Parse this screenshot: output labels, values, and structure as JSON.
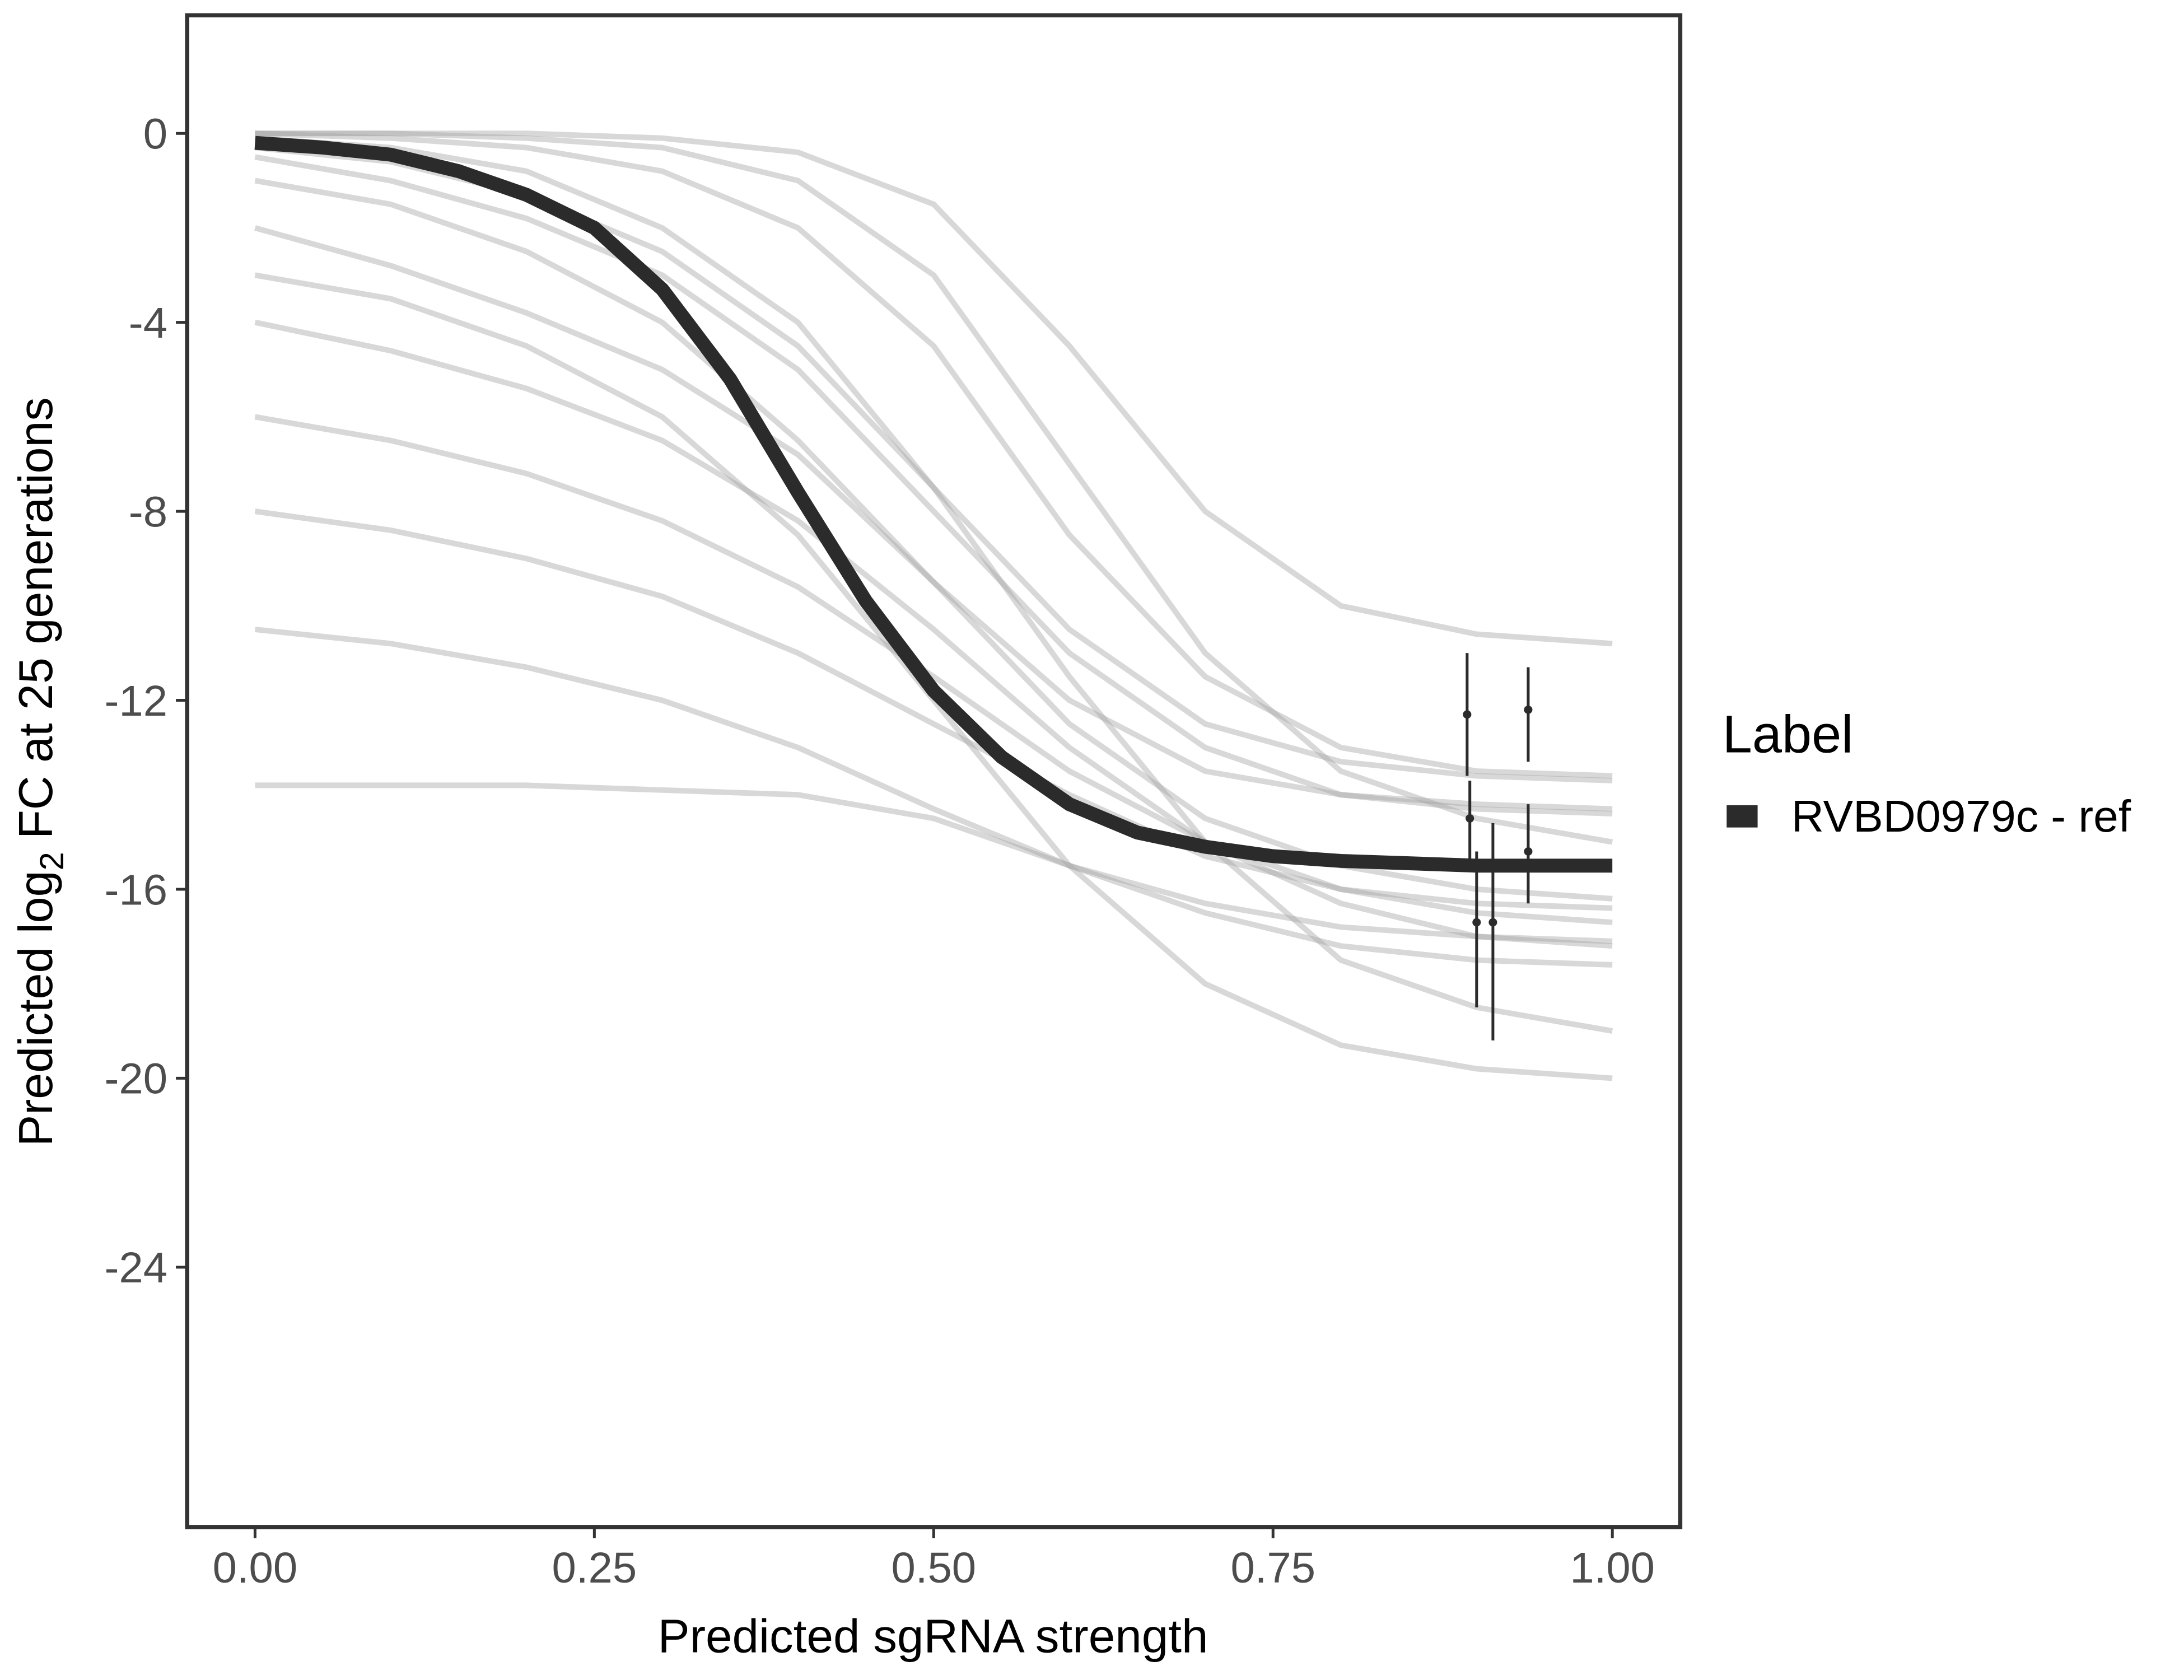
{
  "chart_data": {
    "type": "line",
    "x_label": "Predicted sgRNA strength",
    "y_label": {
      "before": "Predicted  log",
      "sub": "2",
      "after": " FC at 25 generations"
    },
    "legend_title": "Label",
    "legend": "right",
    "xlim": [
      -0.05,
      1.05
    ],
    "ylim": [
      -29.5,
      2.5
    ],
    "xticks": [
      {
        "value": 0,
        "label": "0.00"
      },
      {
        "value": 0.25,
        "label": "0.25"
      },
      {
        "value": 0.5,
        "label": "0.50"
      },
      {
        "value": 0.75,
        "label": "0.75"
      },
      {
        "value": 1,
        "label": "1.00"
      }
    ],
    "yticks": [
      0,
      -4,
      -8,
      -12,
      -16,
      -20,
      -24
    ],
    "x": [
      0,
      0.05,
      0.1,
      0.15,
      0.2,
      0.25,
      0.3,
      0.35,
      0.4,
      0.45,
      0.5,
      0.55,
      0.6,
      0.65,
      0.7,
      0.75,
      0.8,
      0.85,
      0.9,
      0.95,
      1
    ],
    "series": [
      {
        "name": "RVBD0979c - ref",
        "color": "#2b2b2b",
        "values": [
          -0.2,
          -0.3,
          -0.45,
          -0.8,
          -1.3,
          -2.0,
          -3.3,
          -5.2,
          -7.6,
          -9.9,
          -11.8,
          -13.2,
          -14.2,
          -14.8,
          -15.1,
          -15.3,
          -15.4,
          -15.45,
          -15.5,
          -15.5,
          -15.5
        ]
      }
    ],
    "draws_color": "#a8a8a8",
    "draws_x": [
      0,
      0.1,
      0.2,
      0.3,
      0.4,
      0.5,
      0.6,
      0.7,
      0.8,
      0.9,
      1
    ],
    "draws": [
      [
        0,
        -0.1,
        -0.3,
        -0.8,
        -2,
        -4.5,
        -8.5,
        -11.5,
        -13,
        -13.5,
        -13.6
      ],
      [
        -0.5,
        -1,
        -1.8,
        -3,
        -5,
        -8,
        -11,
        -13,
        -14,
        -14.3,
        -14.4
      ],
      [
        -2,
        -2.8,
        -3.8,
        -5,
        -6.8,
        -9.5,
        -12.5,
        -14.5,
        -15.5,
        -16,
        -16.2
      ],
      [
        -4,
        -4.6,
        -5.4,
        -6.5,
        -8.2,
        -10.5,
        -13,
        -15,
        -16.3,
        -17,
        -17.2
      ],
      [
        0,
        0,
        -0.1,
        -0.3,
        -1,
        -3,
        -7,
        -11,
        -13.5,
        -14.5,
        -15
      ],
      [
        -6,
        -6.5,
        -7.2,
        -8.2,
        -9.6,
        -11.5,
        -13.5,
        -15,
        -16,
        -16.5,
        -16.7
      ],
      [
        -8,
        -8.4,
        -9,
        -9.8,
        -11,
        -12.5,
        -14,
        -15.3,
        -16,
        -16.3,
        -16.4
      ],
      [
        -1,
        -1.5,
        -2.5,
        -4,
        -6.5,
        -9.5,
        -12,
        -13.5,
        -14,
        -14.2,
        -14.3
      ],
      [
        -0.1,
        -0.3,
        -0.8,
        -2,
        -4,
        -7.5,
        -11.5,
        -15,
        -17.5,
        -18.5,
        -19
      ],
      [
        -10.5,
        -10.8,
        -11.3,
        -12,
        -13,
        -14.3,
        -15.5,
        -16.3,
        -16.8,
        -17,
        -17.1
      ],
      [
        0,
        0,
        0,
        -0.1,
        -0.4,
        -1.5,
        -4.5,
        -8,
        -10,
        -10.6,
        -10.8
      ],
      [
        -3,
        -3.5,
        -4.5,
        -6,
        -8.5,
        -12,
        -15.5,
        -18,
        -19.3,
        -19.8,
        -20
      ],
      [
        -13.8,
        -13.8,
        -13.8,
        -13.9,
        -14,
        -14.5,
        -15.5,
        -16.5,
        -17.2,
        -17.5,
        -17.6
      ],
      [
        -0.3,
        -0.6,
        -1.3,
        -2.5,
        -4.5,
        -7.5,
        -10.5,
        -12.5,
        -13.3,
        -13.6,
        -13.7
      ]
    ],
    "points": {
      "color": "#2b2b2b",
      "x": [
        0.893,
        0.895,
        0.9,
        0.912,
        0.938,
        0.938
      ],
      "y": [
        -12.3,
        -14.5,
        -16.7,
        -16.7,
        -12.2,
        -15.2
      ],
      "ymin": [
        -13.6,
        -15.4,
        -18.5,
        -19.2,
        -13.3,
        -16.3
      ],
      "ymax": [
        -11.0,
        -13.7,
        -15.2,
        -14.6,
        -11.3,
        -14.2
      ]
    }
  }
}
